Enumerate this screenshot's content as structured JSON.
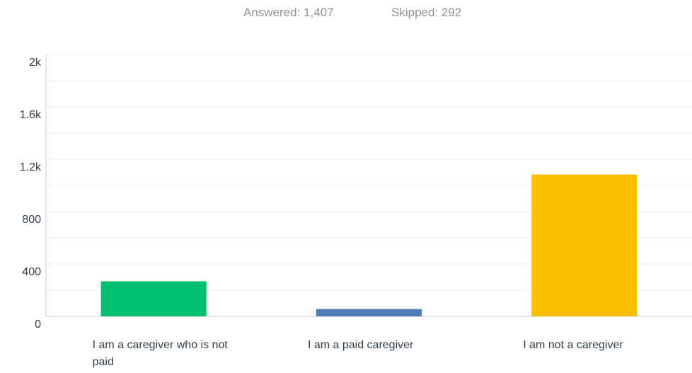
{
  "chart_data": {
    "type": "bar",
    "answered": "Answered: 1,407",
    "skipped": "Skipped: 292",
    "categories": [
      "I am a caregiver who is not paid",
      "I am a paid caregiver",
      "I am not a caregiver"
    ],
    "values": [
      268,
      56,
      1083
    ],
    "colors": [
      "#00bf6f",
      "#507cb6",
      "#f9be00"
    ],
    "ylim": [
      0,
      2000
    ],
    "yticks": [
      0,
      400,
      800,
      {
        "value": 1200,
        "label": "1.2k"
      },
      {
        "value": 1600,
        "label": "1.6k"
      },
      {
        "value": 2000,
        "label": "2k"
      }
    ],
    "minor_yticks": [
      200,
      600,
      1000,
      1400,
      1800
    ],
    "grid": true
  }
}
